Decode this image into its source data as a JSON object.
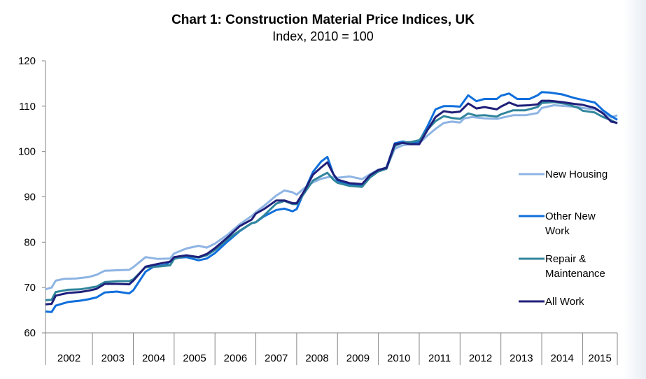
{
  "chart_data": {
    "type": "line",
    "title": "Chart 1: Construction Material Price Indices, UK",
    "subtitle": "Index, 2010 = 100",
    "xlabel": "",
    "ylabel": "",
    "ylim": [
      60,
      120
    ],
    "yticks": [
      "60",
      "70",
      "80",
      "90",
      "100",
      "110",
      "120"
    ],
    "x_categories": [
      "2002",
      "2003",
      "2004",
      "2005",
      "2006",
      "2007",
      "2008",
      "2009",
      "2010",
      "2011",
      "2012",
      "2013",
      "2014",
      "2015"
    ],
    "x_start": 2001.85,
    "grid": false,
    "legend_position": "right",
    "series": [
      {
        "name": "New Housing",
        "color": "#8eb4e3",
        "points": [
          [
            2001.85,
            69.6
          ],
          [
            2002.0,
            70.0
          ],
          [
            2002.1,
            71.5
          ],
          [
            2002.3,
            71.9
          ],
          [
            2002.6,
            72.0
          ],
          [
            2002.9,
            72.3
          ],
          [
            2003.1,
            72.8
          ],
          [
            2003.3,
            73.7
          ],
          [
            2003.6,
            73.8
          ],
          [
            2003.9,
            73.9
          ],
          [
            2004.0,
            74.5
          ],
          [
            2004.3,
            76.7
          ],
          [
            2004.6,
            76.3
          ],
          [
            2004.9,
            76.4
          ],
          [
            2005.0,
            77.5
          ],
          [
            2005.3,
            78.6
          ],
          [
            2005.6,
            79.2
          ],
          [
            2005.8,
            78.8
          ],
          [
            2006.0,
            79.7
          ],
          [
            2006.3,
            81.6
          ],
          [
            2006.6,
            83.9
          ],
          [
            2006.9,
            85.8
          ],
          [
            2007.0,
            86.6
          ],
          [
            2007.2,
            88.0
          ],
          [
            2007.5,
            90.3
          ],
          [
            2007.7,
            91.4
          ],
          [
            2007.9,
            91.0
          ],
          [
            2008.0,
            90.5
          ],
          [
            2008.2,
            92.0
          ],
          [
            2008.4,
            93.2
          ],
          [
            2008.6,
            94.0
          ],
          [
            2008.8,
            94.4
          ],
          [
            2009.0,
            94.2
          ],
          [
            2009.3,
            94.5
          ],
          [
            2009.6,
            93.9
          ],
          [
            2009.8,
            95.0
          ],
          [
            2010.0,
            96.0
          ],
          [
            2010.2,
            96.4
          ],
          [
            2010.4,
            100.6
          ],
          [
            2010.6,
            101.4
          ],
          [
            2010.8,
            101.6
          ],
          [
            2011.0,
            101.8
          ],
          [
            2011.2,
            103.5
          ],
          [
            2011.4,
            105.0
          ],
          [
            2011.6,
            106.3
          ],
          [
            2011.8,
            106.6
          ],
          [
            2012.0,
            106.4
          ],
          [
            2012.1,
            107.3
          ],
          [
            2012.3,
            107.6
          ],
          [
            2012.6,
            107.3
          ],
          [
            2012.9,
            107.2
          ],
          [
            2013.0,
            107.4
          ],
          [
            2013.3,
            108.0
          ],
          [
            2013.6,
            108.0
          ],
          [
            2013.9,
            108.5
          ],
          [
            2014.0,
            109.6
          ],
          [
            2014.3,
            110.2
          ],
          [
            2014.6,
            110.0
          ],
          [
            2014.9,
            109.8
          ],
          [
            2015.0,
            109.6
          ],
          [
            2015.3,
            109.3
          ],
          [
            2015.5,
            108.7
          ],
          [
            2015.7,
            107.5
          ],
          [
            2015.85,
            108.0
          ]
        ]
      },
      {
        "name": "Other New Work",
        "color": "#0f6fdc",
        "points": [
          [
            2001.85,
            64.7
          ],
          [
            2002.0,
            64.6
          ],
          [
            2002.1,
            66.0
          ],
          [
            2002.4,
            66.8
          ],
          [
            2002.7,
            67.1
          ],
          [
            2002.9,
            67.4
          ],
          [
            2003.1,
            67.8
          ],
          [
            2003.3,
            68.9
          ],
          [
            2003.6,
            69.1
          ],
          [
            2003.9,
            68.7
          ],
          [
            2004.0,
            69.4
          ],
          [
            2004.3,
            73.5
          ],
          [
            2004.5,
            74.6
          ],
          [
            2004.8,
            75.0
          ],
          [
            2005.0,
            76.5
          ],
          [
            2005.3,
            76.7
          ],
          [
            2005.6,
            76.0
          ],
          [
            2005.8,
            76.4
          ],
          [
            2006.0,
            77.6
          ],
          [
            2006.3,
            80.1
          ],
          [
            2006.6,
            82.4
          ],
          [
            2006.9,
            84.2
          ],
          [
            2007.0,
            84.4
          ],
          [
            2007.2,
            85.7
          ],
          [
            2007.5,
            87.1
          ],
          [
            2007.7,
            87.4
          ],
          [
            2007.9,
            86.8
          ],
          [
            2008.0,
            87.3
          ],
          [
            2008.2,
            91.5
          ],
          [
            2008.4,
            95.5
          ],
          [
            2008.6,
            97.8
          ],
          [
            2008.75,
            98.8
          ],
          [
            2008.9,
            95.0
          ],
          [
            2009.0,
            93.5
          ],
          [
            2009.3,
            92.7
          ],
          [
            2009.6,
            92.6
          ],
          [
            2009.8,
            94.5
          ],
          [
            2010.0,
            95.8
          ],
          [
            2010.2,
            96.5
          ],
          [
            2010.4,
            101.8
          ],
          [
            2010.6,
            102.2
          ],
          [
            2010.8,
            101.8
          ],
          [
            2011.0,
            102.2
          ],
          [
            2011.2,
            105.5
          ],
          [
            2011.4,
            109.3
          ],
          [
            2011.6,
            110.0
          ],
          [
            2011.8,
            110.0
          ],
          [
            2012.0,
            109.9
          ],
          [
            2012.2,
            112.4
          ],
          [
            2012.4,
            111.1
          ],
          [
            2012.6,
            111.6
          ],
          [
            2012.9,
            111.6
          ],
          [
            2013.0,
            112.3
          ],
          [
            2013.2,
            112.8
          ],
          [
            2013.4,
            111.6
          ],
          [
            2013.7,
            111.6
          ],
          [
            2013.9,
            112.4
          ],
          [
            2014.0,
            113.1
          ],
          [
            2014.2,
            113.0
          ],
          [
            2014.5,
            112.6
          ],
          [
            2014.8,
            111.8
          ],
          [
            2015.0,
            111.4
          ],
          [
            2015.3,
            110.8
          ],
          [
            2015.5,
            109.1
          ],
          [
            2015.7,
            107.8
          ],
          [
            2015.85,
            107.0
          ]
        ]
      },
      {
        "name": "Repair & Maintenance",
        "color": "#31859c",
        "points": [
          [
            2001.85,
            67.2
          ],
          [
            2002.0,
            67.3
          ],
          [
            2002.1,
            69.0
          ],
          [
            2002.4,
            69.5
          ],
          [
            2002.7,
            69.6
          ],
          [
            2002.9,
            69.9
          ],
          [
            2003.1,
            70.2
          ],
          [
            2003.3,
            71.2
          ],
          [
            2003.6,
            71.4
          ],
          [
            2003.9,
            71.4
          ],
          [
            2004.0,
            71.8
          ],
          [
            2004.3,
            74.5
          ],
          [
            2004.6,
            74.6
          ],
          [
            2004.9,
            74.9
          ],
          [
            2005.0,
            76.3
          ],
          [
            2005.3,
            77.0
          ],
          [
            2005.6,
            76.6
          ],
          [
            2005.8,
            77.1
          ],
          [
            2006.0,
            78.3
          ],
          [
            2006.3,
            80.6
          ],
          [
            2006.6,
            82.5
          ],
          [
            2006.9,
            84.2
          ],
          [
            2007.0,
            84.4
          ],
          [
            2007.2,
            85.9
          ],
          [
            2007.5,
            88.5
          ],
          [
            2007.7,
            89.1
          ],
          [
            2007.9,
            88.4
          ],
          [
            2008.0,
            88.4
          ],
          [
            2008.2,
            91.0
          ],
          [
            2008.4,
            93.6
          ],
          [
            2008.6,
            94.6
          ],
          [
            2008.75,
            95.3
          ],
          [
            2008.9,
            93.8
          ],
          [
            2009.0,
            93.1
          ],
          [
            2009.3,
            92.4
          ],
          [
            2009.6,
            92.2
          ],
          [
            2009.8,
            94.3
          ],
          [
            2010.0,
            95.6
          ],
          [
            2010.2,
            96.2
          ],
          [
            2010.4,
            101.2
          ],
          [
            2010.6,
            102.0
          ],
          [
            2010.8,
            102.1
          ],
          [
            2011.0,
            102.5
          ],
          [
            2011.2,
            104.8
          ],
          [
            2011.4,
            106.7
          ],
          [
            2011.6,
            107.8
          ],
          [
            2011.8,
            107.4
          ],
          [
            2012.0,
            107.2
          ],
          [
            2012.2,
            108.4
          ],
          [
            2012.4,
            107.9
          ],
          [
            2012.6,
            108.0
          ],
          [
            2012.9,
            107.7
          ],
          [
            2013.0,
            108.2
          ],
          [
            2013.3,
            109.1
          ],
          [
            2013.6,
            109.1
          ],
          [
            2013.9,
            109.8
          ],
          [
            2014.0,
            110.7
          ],
          [
            2014.3,
            110.9
          ],
          [
            2014.6,
            110.5
          ],
          [
            2014.9,
            109.6
          ],
          [
            2015.0,
            109.0
          ],
          [
            2015.3,
            108.6
          ],
          [
            2015.5,
            107.6
          ],
          [
            2015.7,
            106.9
          ],
          [
            2015.85,
            106.2
          ]
        ]
      },
      {
        "name": "All Work",
        "color": "#1f1f7a",
        "points": [
          [
            2001.85,
            66.3
          ],
          [
            2002.0,
            66.4
          ],
          [
            2002.1,
            68.2
          ],
          [
            2002.4,
            68.8
          ],
          [
            2002.7,
            69.0
          ],
          [
            2002.9,
            69.3
          ],
          [
            2003.1,
            69.7
          ],
          [
            2003.3,
            70.8
          ],
          [
            2003.6,
            70.8
          ],
          [
            2003.9,
            70.7
          ],
          [
            2004.0,
            71.5
          ],
          [
            2004.3,
            74.6
          ],
          [
            2004.6,
            75.2
          ],
          [
            2004.9,
            75.7
          ],
          [
            2005.0,
            76.7
          ],
          [
            2005.3,
            77.1
          ],
          [
            2005.6,
            76.7
          ],
          [
            2005.8,
            77.4
          ],
          [
            2006.0,
            78.7
          ],
          [
            2006.3,
            81.0
          ],
          [
            2006.6,
            83.5
          ],
          [
            2006.9,
            85.0
          ],
          [
            2007.0,
            86.3
          ],
          [
            2007.2,
            87.3
          ],
          [
            2007.5,
            89.2
          ],
          [
            2007.7,
            89.2
          ],
          [
            2007.9,
            88.6
          ],
          [
            2008.0,
            88.6
          ],
          [
            2008.2,
            91.5
          ],
          [
            2008.4,
            94.9
          ],
          [
            2008.6,
            96.5
          ],
          [
            2008.75,
            97.6
          ],
          [
            2008.9,
            95.0
          ],
          [
            2009.0,
            93.8
          ],
          [
            2009.3,
            93.0
          ],
          [
            2009.6,
            92.8
          ],
          [
            2009.8,
            94.8
          ],
          [
            2010.0,
            95.9
          ],
          [
            2010.2,
            96.4
          ],
          [
            2010.4,
            101.6
          ],
          [
            2010.6,
            101.9
          ],
          [
            2010.8,
            101.6
          ],
          [
            2011.0,
            101.6
          ],
          [
            2011.2,
            104.7
          ],
          [
            2011.4,
            107.6
          ],
          [
            2011.6,
            108.9
          ],
          [
            2011.8,
            108.6
          ],
          [
            2012.0,
            108.8
          ],
          [
            2012.2,
            110.6
          ],
          [
            2012.4,
            109.5
          ],
          [
            2012.6,
            109.8
          ],
          [
            2012.9,
            109.3
          ],
          [
            2013.0,
            109.9
          ],
          [
            2013.2,
            110.8
          ],
          [
            2013.4,
            110.1
          ],
          [
            2013.7,
            110.2
          ],
          [
            2013.9,
            110.4
          ],
          [
            2014.0,
            111.2
          ],
          [
            2014.2,
            111.2
          ],
          [
            2014.5,
            110.9
          ],
          [
            2014.8,
            110.5
          ],
          [
            2015.0,
            110.3
          ],
          [
            2015.3,
            109.6
          ],
          [
            2015.5,
            108.4
          ],
          [
            2015.7,
            106.6
          ],
          [
            2015.85,
            106.3
          ]
        ]
      }
    ]
  }
}
